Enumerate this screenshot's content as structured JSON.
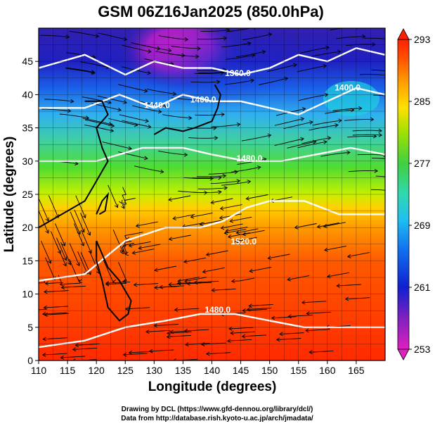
{
  "title": "GSM 06Z16Jan2025 (850.0hPa)",
  "xlabel": "Longitude (degrees)",
  "ylabel": "Latitude  (degrees)",
  "credits": [
    "Drawing by DCL (https://www.gfd-dennou.org/library/dcl/)",
    "Data from http://database.rish.kyoto-u.ac.jp/arch/jmadata/"
  ],
  "x_ticks": [
    "110",
    "115",
    "120",
    "125",
    "130",
    "135",
    "140",
    "145",
    "150",
    "155",
    "160",
    "165"
  ],
  "y_ticks": [
    "0",
    "5",
    "10",
    "15",
    "20",
    "25",
    "30",
    "35",
    "40",
    "45"
  ],
  "colorbar": {
    "ticks": [
      "293",
      "285",
      "277",
      "269",
      "261",
      "253"
    ],
    "range": [
      253,
      293
    ]
  },
  "map": {
    "lon_range": [
      110,
      170
    ],
    "lat_range": [
      0,
      50
    ],
    "contour_labels": [
      {
        "text": "1360.0",
        "lon": 144.5,
        "lat": 42.8
      },
      {
        "text": "1400.0",
        "lon": 138.5,
        "lat": 38.8
      },
      {
        "text": "1440.0",
        "lon": 130.5,
        "lat": 38.0
      },
      {
        "text": "1480.0",
        "lon": 146.5,
        "lat": 30.0
      },
      {
        "text": "1520.0",
        "lon": 145.5,
        "lat": 17.5
      },
      {
        "text": "1480.0",
        "lon": 141.0,
        "lat": 7.2
      },
      {
        "text": "1400.0",
        "lon": 163.5,
        "lat": 40.6
      }
    ],
    "colors": {
      "warm": "#ff2a00",
      "cold": "#e020c8",
      "mid": "#40d040"
    }
  }
}
